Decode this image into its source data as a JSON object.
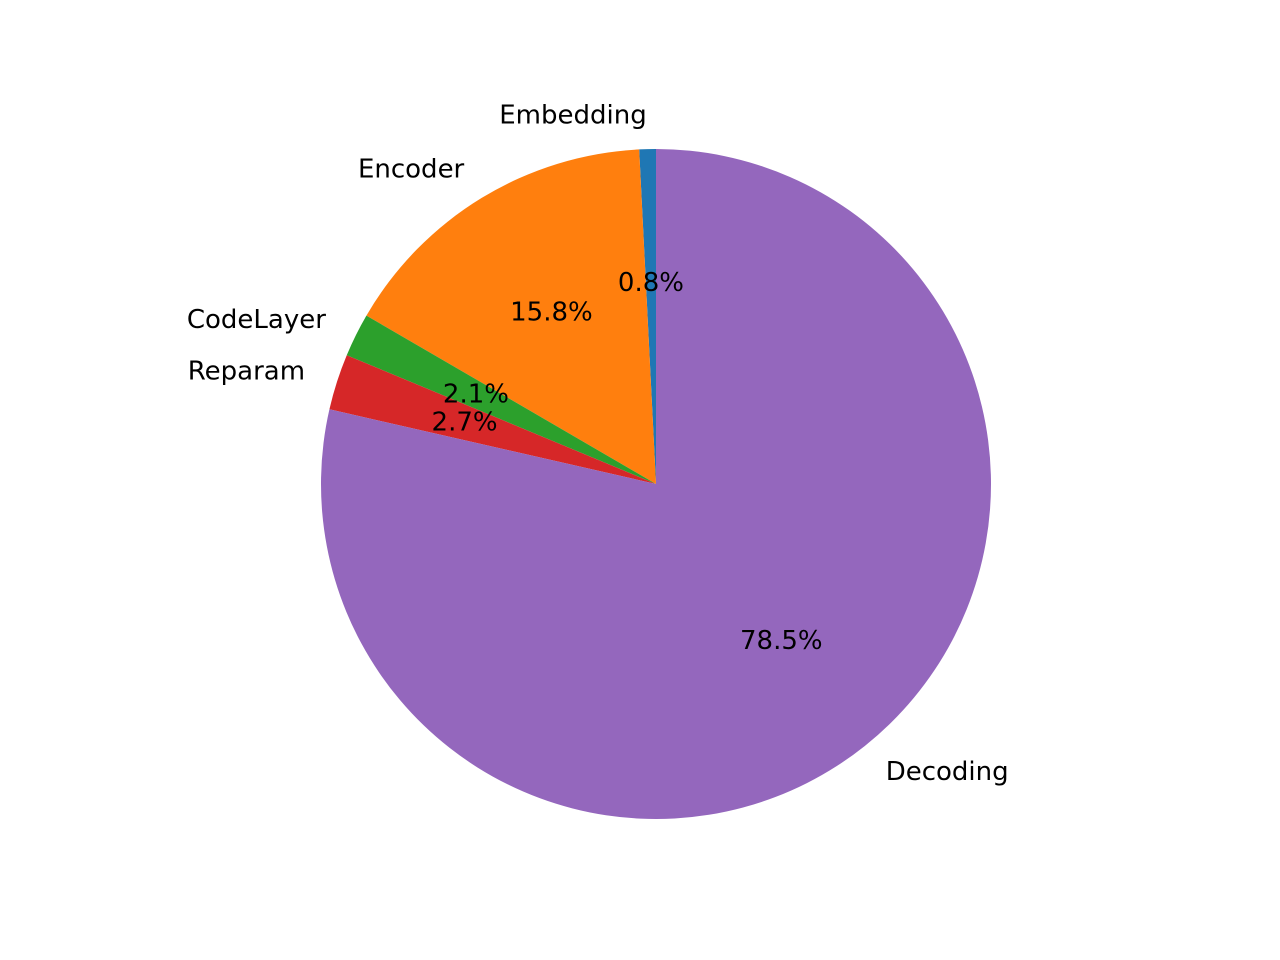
{
  "chart_data": {
    "type": "pie",
    "title": "",
    "start_angle_deg": 90,
    "direction": "counterclockwise",
    "slices": [
      {
        "label": "Embedding",
        "value": 0.8,
        "pct_label": "0.8%",
        "color": "#1f77b4"
      },
      {
        "label": "Encoder",
        "value": 15.8,
        "pct_label": "15.8%",
        "color": "#ff7f0e"
      },
      {
        "label": "CodeLayer",
        "value": 2.1,
        "pct_label": "2.1%",
        "color": "#2ca02c"
      },
      {
        "label": "Reparam",
        "value": 2.7,
        "pct_label": "2.7%",
        "color": "#d62728"
      },
      {
        "label": "Decoding",
        "value": 78.5,
        "pct_label": "78.5%",
        "color": "#9467bd"
      }
    ]
  }
}
